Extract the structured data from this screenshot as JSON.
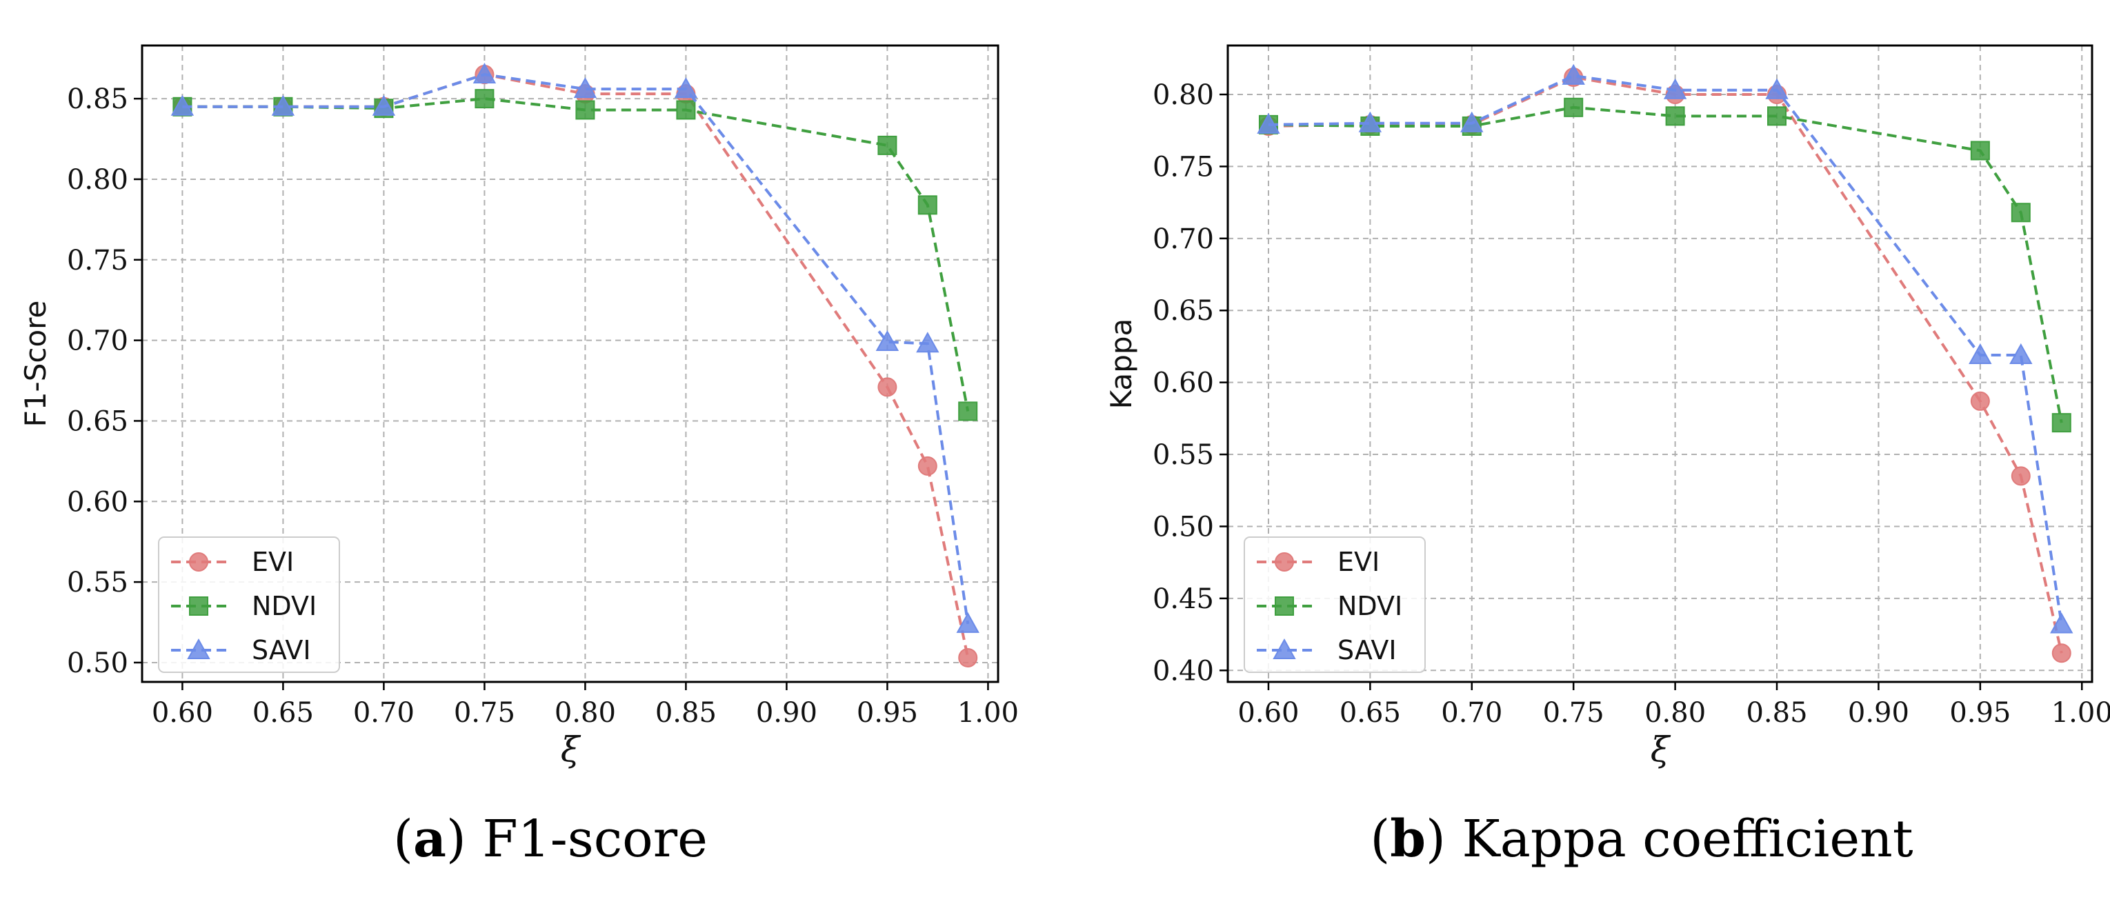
{
  "chart_data": [
    {
      "type": "line",
      "panel_id": "a",
      "caption_letter": "a",
      "caption_text": "F1-score",
      "xlabel": "ξ",
      "ylabel": "F1-Score",
      "xlim": [
        0.58,
        1.005
      ],
      "ylim": [
        0.488,
        0.883
      ],
      "x_ticks": [
        "0.60",
        "0.65",
        "0.70",
        "0.75",
        "0.80",
        "0.85",
        "0.90",
        "0.95",
        "1.00"
      ],
      "y_ticks": [
        "0.50",
        "0.55",
        "0.60",
        "0.65",
        "0.70",
        "0.75",
        "0.80",
        "0.85"
      ],
      "grid": true,
      "legend_position": "lower-left",
      "x": [
        0.6,
        0.65,
        0.7,
        0.75,
        0.8,
        0.85,
        0.95,
        0.97,
        0.99
      ],
      "series": [
        {
          "name": "EVI",
          "color": "#e07b7b",
          "marker": "circle",
          "values": [
            0.845,
            0.845,
            0.845,
            0.865,
            0.853,
            0.853,
            0.671,
            0.622,
            0.503
          ]
        },
        {
          "name": "NDVI",
          "color": "#3f9f3f",
          "marker": "square",
          "values": [
            0.845,
            0.845,
            0.844,
            0.85,
            0.843,
            0.843,
            0.821,
            0.784,
            0.656
          ]
        },
        {
          "name": "SAVI",
          "color": "#6b8be8",
          "marker": "triangle",
          "values": [
            0.845,
            0.845,
            0.845,
            0.865,
            0.856,
            0.856,
            0.699,
            0.698,
            0.524
          ]
        }
      ]
    },
    {
      "type": "line",
      "panel_id": "b",
      "caption_letter": "b",
      "caption_text": "Kappa coefficient",
      "xlabel": "ξ",
      "ylabel": "Kappa",
      "xlim": [
        0.58,
        1.005
      ],
      "ylim": [
        0.392,
        0.834
      ],
      "x_ticks": [
        "0.60",
        "0.65",
        "0.70",
        "0.75",
        "0.80",
        "0.85",
        "0.90",
        "0.95",
        "1.00"
      ],
      "y_ticks": [
        "0.40",
        "0.45",
        "0.50",
        "0.55",
        "0.60",
        "0.65",
        "0.70",
        "0.75",
        "0.80"
      ],
      "grid": true,
      "legend_position": "lower-left",
      "x": [
        0.6,
        0.65,
        0.7,
        0.75,
        0.8,
        0.85,
        0.95,
        0.97,
        0.99
      ],
      "series": [
        {
          "name": "EVI",
          "color": "#e07b7b",
          "marker": "circle",
          "values": [
            0.778,
            0.779,
            0.779,
            0.812,
            0.8,
            0.8,
            0.587,
            0.535,
            0.412
          ]
        },
        {
          "name": "NDVI",
          "color": "#3f9f3f",
          "marker": "square",
          "values": [
            0.779,
            0.778,
            0.778,
            0.791,
            0.785,
            0.785,
            0.761,
            0.718,
            0.572
          ]
        },
        {
          "name": "SAVI",
          "color": "#6b8be8",
          "marker": "triangle",
          "values": [
            0.779,
            0.78,
            0.78,
            0.813,
            0.803,
            0.803,
            0.619,
            0.619,
            0.432
          ]
        }
      ]
    }
  ]
}
